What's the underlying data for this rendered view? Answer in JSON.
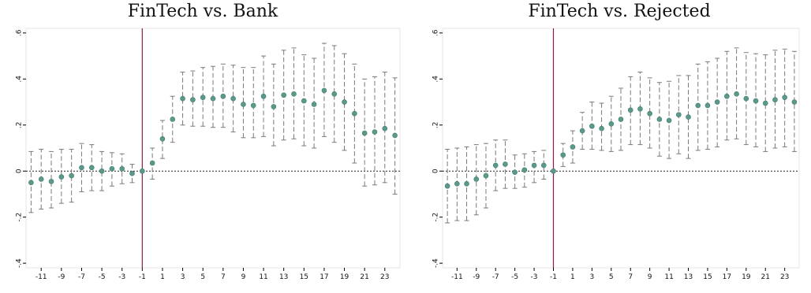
{
  "chart_data": [
    {
      "type": "scatter",
      "title": "FinTech vs. Bank",
      "xlabel": "",
      "ylabel": "",
      "xlim": [
        -12.5,
        24.5
      ],
      "ylim": [
        -0.42,
        0.62
      ],
      "x_tick_labels": [
        "-11",
        "-9",
        "-7",
        "-5",
        "-3",
        "-1",
        "1",
        "3",
        "5",
        "7",
        "9",
        "11",
        "13",
        "15",
        "17",
        "19",
        "21",
        "23"
      ],
      "y_tick_labels": [
        "-.4",
        "-.2",
        "0",
        ".2",
        ".4",
        ".6"
      ],
      "reference_x": -1,
      "reference_y": 0,
      "error_bars": "95% confidence interval (dashed)",
      "grid": false,
      "x": [
        -12,
        -11,
        -10,
        -9,
        -8,
        -7,
        -6,
        -5,
        -4,
        -3,
        -2,
        -1,
        0,
        1,
        2,
        3,
        4,
        5,
        6,
        7,
        8,
        9,
        10,
        11,
        12,
        13,
        14,
        15,
        16,
        17,
        18,
        19,
        20,
        21,
        22,
        23,
        24
      ],
      "y": [
        -0.05,
        -0.035,
        -0.045,
        -0.025,
        -0.02,
        0.015,
        0.015,
        0.0,
        0.01,
        0.01,
        -0.01,
        0.0,
        0.035,
        0.14,
        0.225,
        0.315,
        0.31,
        0.32,
        0.315,
        0.325,
        0.315,
        0.29,
        0.285,
        0.325,
        0.28,
        0.33,
        0.335,
        0.305,
        0.29,
        0.35,
        0.335,
        0.3,
        0.25,
        0.165,
        0.17,
        0.185,
        0.155
      ],
      "ci_low": [
        -0.18,
        -0.165,
        -0.16,
        -0.14,
        -0.135,
        -0.09,
        -0.085,
        -0.085,
        -0.065,
        -0.055,
        -0.05,
        0.0,
        -0.035,
        0.055,
        0.125,
        0.2,
        0.195,
        0.195,
        0.19,
        0.19,
        0.17,
        0.145,
        0.145,
        0.15,
        0.11,
        0.135,
        0.14,
        0.11,
        0.1,
        0.15,
        0.125,
        0.09,
        0.035,
        -0.065,
        -0.06,
        -0.05,
        -0.1
      ],
      "ci_high": [
        0.085,
        0.095,
        0.085,
        0.095,
        0.095,
        0.12,
        0.115,
        0.085,
        0.08,
        0.075,
        0.03,
        0.0,
        0.1,
        0.22,
        0.325,
        0.43,
        0.435,
        0.45,
        0.455,
        0.465,
        0.46,
        0.45,
        0.45,
        0.5,
        0.465,
        0.525,
        0.535,
        0.505,
        0.49,
        0.555,
        0.545,
        0.51,
        0.465,
        0.4,
        0.41,
        0.43,
        0.405
      ]
    },
    {
      "type": "scatter",
      "title": "FinTech vs. Rejected",
      "xlabel": "",
      "ylabel": "",
      "xlim": [
        -12.5,
        24.5
      ],
      "ylim": [
        -0.42,
        0.62
      ],
      "x_tick_labels": [
        "-11",
        "-9",
        "-7",
        "-5",
        "-3",
        "-1",
        "1",
        "3",
        "5",
        "7",
        "9",
        "11",
        "13",
        "15",
        "17",
        "19",
        "21",
        "23"
      ],
      "y_tick_labels": [
        "-.4",
        "-.2",
        "0",
        ".2",
        ".4",
        ".6"
      ],
      "reference_x": -1,
      "reference_y": 0,
      "error_bars": "95% confidence interval (dashed)",
      "grid": false,
      "x": [
        -12,
        -11,
        -10,
        -9,
        -8,
        -7,
        -6,
        -5,
        -4,
        -3,
        -2,
        -1,
        0,
        1,
        2,
        3,
        4,
        5,
        6,
        7,
        8,
        9,
        10,
        11,
        12,
        13,
        14,
        15,
        16,
        17,
        18,
        19,
        20,
        21,
        22,
        23,
        24
      ],
      "y": [
        -0.065,
        -0.055,
        -0.055,
        -0.035,
        -0.02,
        0.025,
        0.03,
        -0.005,
        0.005,
        0.025,
        0.025,
        0.0,
        0.07,
        0.105,
        0.175,
        0.195,
        0.185,
        0.205,
        0.225,
        0.265,
        0.27,
        0.25,
        0.225,
        0.22,
        0.245,
        0.235,
        0.285,
        0.285,
        0.3,
        0.325,
        0.335,
        0.315,
        0.305,
        0.295,
        0.31,
        0.32,
        0.3
      ],
      "ci_low": [
        -0.225,
        -0.215,
        -0.215,
        -0.19,
        -0.16,
        -0.085,
        -0.075,
        -0.075,
        -0.07,
        -0.05,
        -0.035,
        0.0,
        0.02,
        0.035,
        0.095,
        0.095,
        0.09,
        0.085,
        0.09,
        0.115,
        0.115,
        0.1,
        0.065,
        0.055,
        0.075,
        0.055,
        0.09,
        0.095,
        0.105,
        0.135,
        0.14,
        0.115,
        0.105,
        0.085,
        0.1,
        0.105,
        0.085
      ],
      "ci_high": [
        0.095,
        0.1,
        0.105,
        0.115,
        0.12,
        0.135,
        0.135,
        0.07,
        0.075,
        0.085,
        0.09,
        0.0,
        0.12,
        0.175,
        0.255,
        0.3,
        0.295,
        0.325,
        0.36,
        0.41,
        0.43,
        0.405,
        0.385,
        0.39,
        0.415,
        0.415,
        0.465,
        0.475,
        0.49,
        0.52,
        0.535,
        0.515,
        0.51,
        0.505,
        0.525,
        0.53,
        0.52
      ]
    }
  ],
  "colors": {
    "marker": "#5b9a8b",
    "marker_edge": "#3f7a6c",
    "ci": "#7a7a7a",
    "vline": "#8b1a4a",
    "hline": "#222222",
    "axis": "#000000"
  }
}
